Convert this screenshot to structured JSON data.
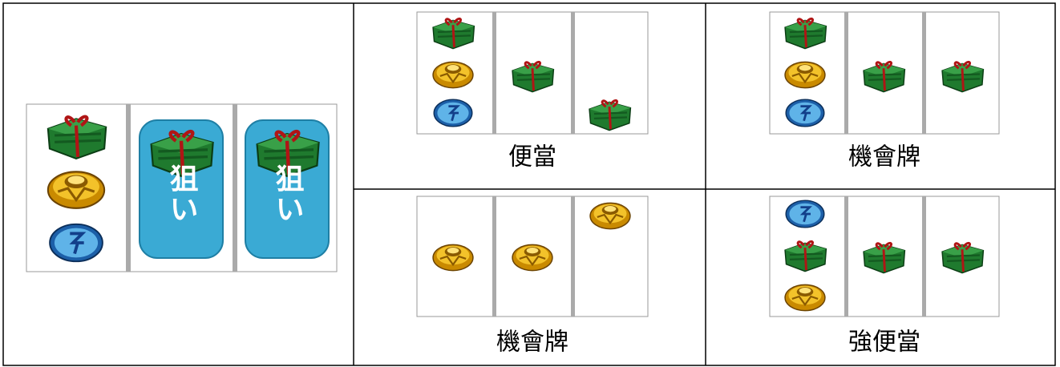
{
  "left_reel": {
    "labels": [
      "狙い",
      "狙い"
    ]
  },
  "cells": [
    {
      "label": "便當"
    },
    {
      "label": "機會牌"
    },
    {
      "label": "機會牌"
    },
    {
      "label": "強便當"
    }
  ]
}
